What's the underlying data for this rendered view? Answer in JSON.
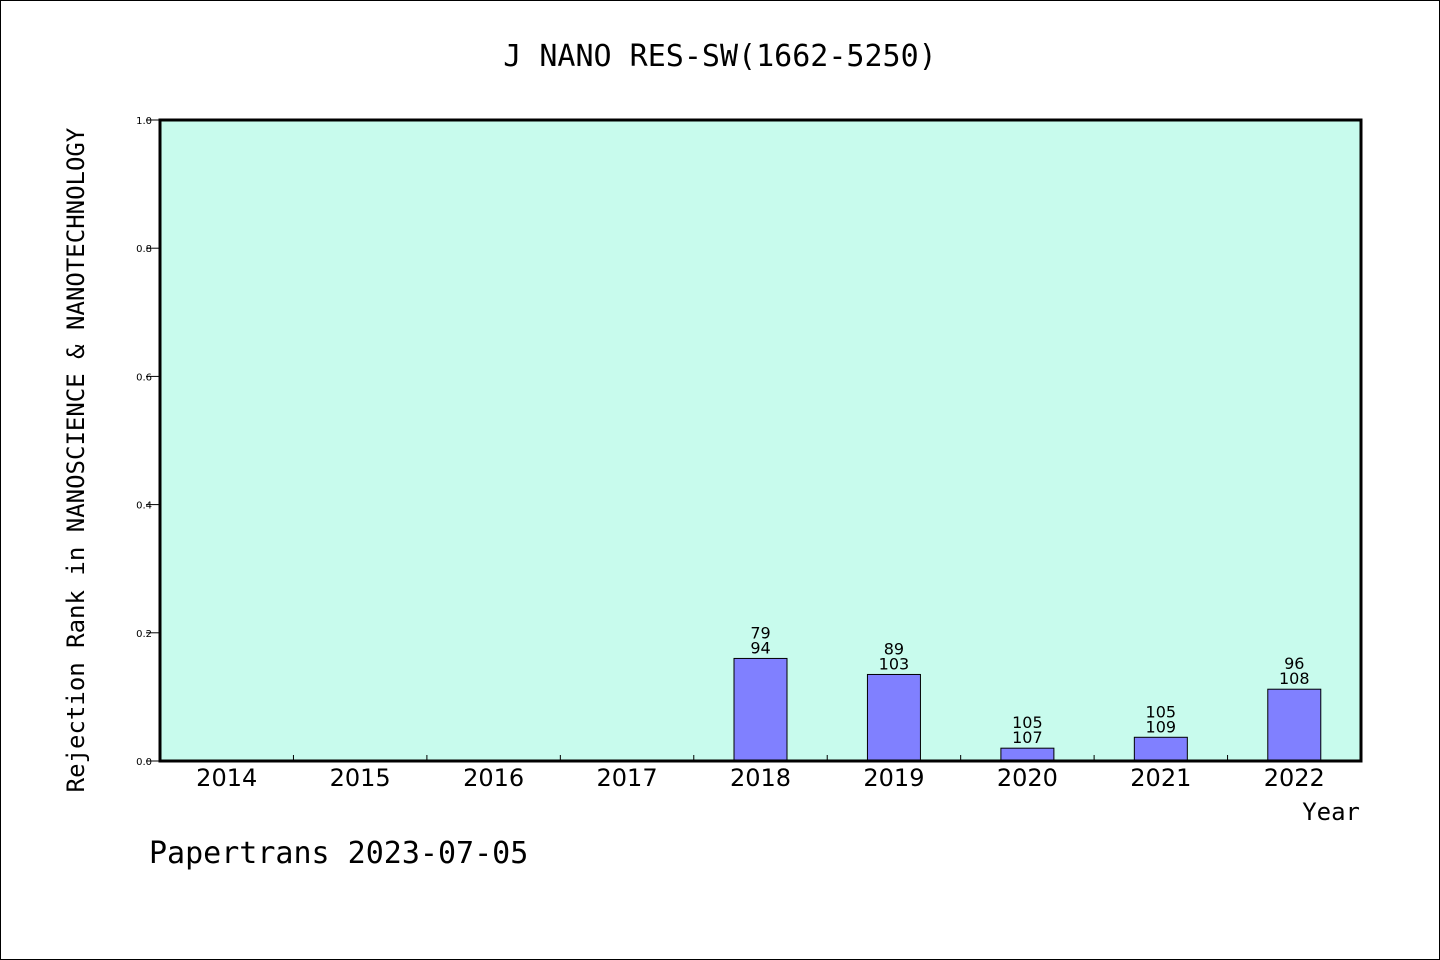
{
  "chart_data": {
    "type": "bar",
    "title": "J NANO RES-SW(1662-5250)",
    "xlabel": "Year",
    "ylabel": "Rejection Rank in NANOSCIENCE & NANOTECHNOLOGY",
    "ylim": [
      0,
      1.0
    ],
    "yticks": [
      "0.0",
      "0.2",
      "0.4",
      "0.6",
      "0.8",
      "1.0"
    ],
    "grid": false,
    "categories": [
      "2014",
      "2015",
      "2016",
      "2017",
      "2018",
      "2019",
      "2020",
      "2021",
      "2022"
    ],
    "values": [
      null,
      null,
      null,
      null,
      0.16,
      0.135,
      0.02,
      0.037,
      0.112
    ],
    "bar_labels": [
      null,
      null,
      null,
      null,
      [
        "79",
        "94"
      ],
      [
        "89",
        "103"
      ],
      [
        "105",
        "107"
      ],
      [
        "105",
        "109"
      ],
      [
        "96",
        "108"
      ]
    ],
    "colors": {
      "plot_background": "#c8fbed",
      "bar_fill": "#8080ff",
      "axis": "#000000"
    }
  },
  "footer": "Papertrans 2023-07-05"
}
